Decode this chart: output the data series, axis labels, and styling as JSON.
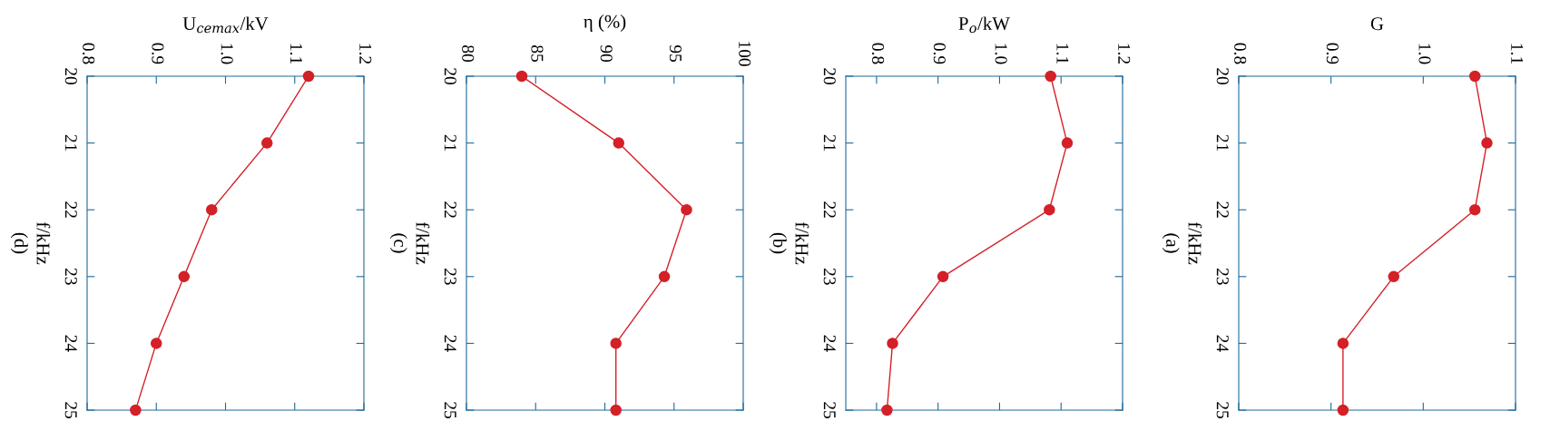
{
  "chart_data": [
    {
      "type": "line",
      "title": "(d)",
      "xlabel": "U$_{cemax}$/kV",
      "ylabel": "f/kHz",
      "series": [
        {
          "color": "#d42027",
          "x": [
            1.12,
            1.06,
            0.98,
            0.94,
            0.9,
            0.87
          ],
          "values": [
            20,
            21,
            22,
            23,
            24,
            25
          ]
        }
      ],
      "xlim": [
        0.8,
        1.2
      ],
      "xticks": [
        {
          "value": 0.8,
          "label": "0.8"
        },
        {
          "value": 0.9,
          "label": "0.9"
        },
        {
          "value": 1.0,
          "label": "1.0"
        },
        {
          "value": 1.1,
          "label": "1.1"
        },
        {
          "value": 1.2,
          "label": "1.2"
        }
      ],
      "ylim": [
        25,
        20
      ],
      "yticks": [
        20,
        21,
        22,
        23,
        24,
        25
      ],
      "marker": "circle",
      "line_style": "solid",
      "grid": false,
      "legend": false
    },
    {
      "type": "line",
      "title": "(c)",
      "xlabel": "η (%)",
      "ylabel": "f/kHz",
      "series": [
        {
          "color": "#d42027",
          "x": [
            84.0,
            91.0,
            95.9,
            94.3,
            90.8,
            90.8
          ],
          "values": [
            20,
            21,
            22,
            23,
            24,
            25
          ]
        }
      ],
      "xlim": [
        80,
        100
      ],
      "xticks": [
        80,
        85,
        90,
        95,
        100
      ],
      "ylim": [
        25,
        20
      ],
      "yticks": [
        20,
        21,
        22,
        23,
        24,
        25
      ],
      "marker": "circle",
      "line_style": "solid",
      "grid": false,
      "legend": false
    },
    {
      "type": "line",
      "title": "(b)",
      "xlabel": "P$_{o}$/kW",
      "ylabel": "f/kHz",
      "series": [
        {
          "color": "#d42027",
          "x": [
            1.083,
            1.11,
            1.081,
            0.908,
            0.826,
            0.817
          ],
          "values": [
            20,
            21,
            22,
            23,
            24,
            25
          ]
        }
      ],
      "xlim": [
        0.75,
        1.2
      ],
      "xticks": [
        {
          "value": 0.8,
          "label": "0.8"
        },
        {
          "value": 0.9,
          "label": "0.9"
        },
        {
          "value": 1.0,
          "label": "1.0"
        },
        {
          "value": 1.1,
          "label": "1.1"
        },
        {
          "value": 1.2,
          "label": "1.2"
        }
      ],
      "ylim": [
        25,
        20
      ],
      "yticks": [
        20,
        21,
        22,
        23,
        24,
        25
      ],
      "marker": "circle",
      "line_style": "solid",
      "grid": false,
      "legend": false
    },
    {
      "type": "line",
      "title": "(a)",
      "xlabel": "G",
      "ylabel": "f/kHz",
      "series": [
        {
          "color": "#d42027",
          "x": [
            1.056,
            1.069,
            1.056,
            0.968,
            0.913,
            0.913
          ],
          "values": [
            20,
            21,
            22,
            23,
            24,
            25
          ]
        }
      ],
      "xlim": [
        0.8,
        1.1
      ],
      "xticks": [
        {
          "value": 0.8,
          "label": "0.8"
        },
        {
          "value": 0.9,
          "label": "0.9"
        },
        {
          "value": 1.0,
          "label": "1.0"
        },
        {
          "value": 1.1,
          "label": "1.1"
        }
      ],
      "ylim": [
        25,
        20
      ],
      "yticks": [
        20,
        21,
        22,
        23,
        24,
        25
      ],
      "marker": "circle",
      "line_style": "solid",
      "grid": false,
      "legend": false
    }
  ]
}
